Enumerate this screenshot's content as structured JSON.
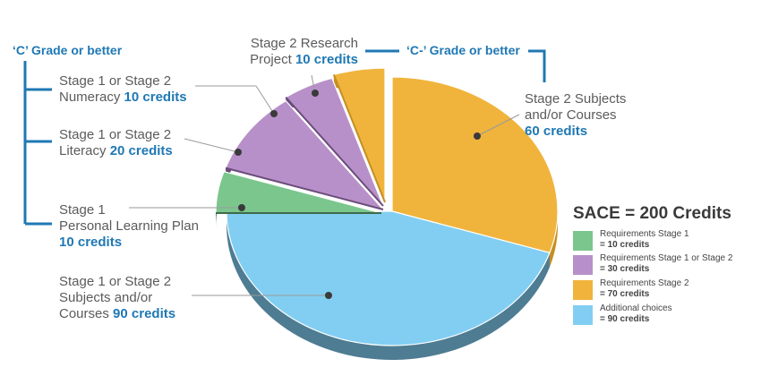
{
  "colors": {
    "text": "#5b5b5b",
    "accent": "#1f78b4",
    "bracket": "#1f78b4",
    "leader": "#9a9a9a"
  },
  "grades": {
    "c_grade": "‘C’ Grade or better",
    "c_minus_grade": "‘C-’ Grade or better"
  },
  "labels": {
    "numeracy": {
      "line1": "Stage 1 or Stage 2",
      "line2": "Numeracy",
      "credits": "10 credits"
    },
    "literacy": {
      "line1": "Stage 1 or Stage 2",
      "line2": "Literacy",
      "credits": "20 credits"
    },
    "plp": {
      "line1": "Stage 1",
      "line2": "Personal Learning Plan",
      "credits": "10 credits"
    },
    "research": {
      "line1": "Stage 2 Research",
      "line2": "Project",
      "credits": "10 credits"
    },
    "stage2_subjects": {
      "line1": "Stage 2 Subjects",
      "line2": "and/or Courses",
      "credits": "60 credits"
    },
    "additional": {
      "line1": "Stage 1 or Stage 2",
      "line2": "Subjects and/or",
      "line3": "Courses",
      "credits": "90 credits"
    }
  },
  "legend": {
    "title": "SACE = 200 Credits",
    "items": [
      {
        "label": "Requirements Stage 1",
        "value": "= 10 credits",
        "color": "#7bc68d"
      },
      {
        "label": "Requirements Stage 1 or Stage 2",
        "value": "= 30 credits",
        "color": "#b890c9"
      },
      {
        "label": "Requirements Stage 2",
        "value": "= 70 credits",
        "color": "#f0b43c"
      },
      {
        "label": "Additional choices",
        "value": "= 90 credits",
        "color": "#82cef2"
      }
    ]
  },
  "chart_data": {
    "type": "pie",
    "title": "SACE = 200 Credits",
    "total": 200,
    "slices": [
      {
        "name": "Stage 2 Subjects and/or Courses",
        "value": 60,
        "group": "Requirements Stage 2",
        "color": "#f0b43c",
        "side": "#c58f20"
      },
      {
        "name": "Stage 1 or Stage 2 Subjects and/or Courses",
        "value": 90,
        "group": "Additional choices",
        "color": "#82cef2",
        "side": "#4e7c92"
      },
      {
        "name": "Stage 1 Personal Learning Plan",
        "value": 10,
        "group": "Requirements Stage 1",
        "color": "#7bc68d",
        "side": "#3e6a4c"
      },
      {
        "name": "Stage 1 or Stage 2 Literacy",
        "value": 20,
        "group": "Requirements Stage 1 or Stage 2",
        "color": "#b890c9",
        "side": "#6b4c7c"
      },
      {
        "name": "Stage 1 or Stage 2 Numeracy",
        "value": 10,
        "group": "Requirements Stage 1 or Stage 2",
        "color": "#b890c9",
        "side": "#6b4c7c"
      },
      {
        "name": "Stage 2 Research Project",
        "value": 10,
        "group": "Requirements Stage 2",
        "color": "#f0b43c",
        "side": "#c58f20"
      }
    ]
  }
}
